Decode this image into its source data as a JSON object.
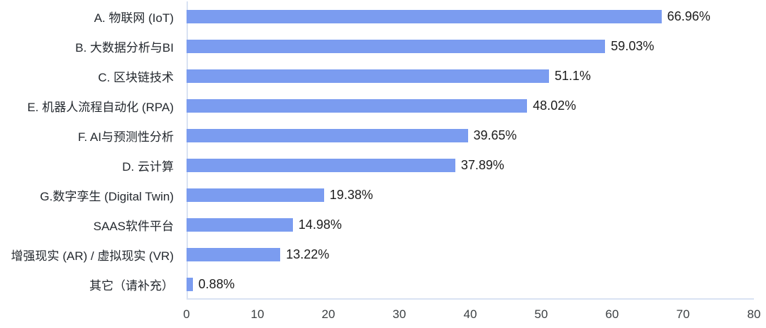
{
  "chart_data": {
    "type": "bar",
    "orientation": "horizontal",
    "title": "",
    "categories": [
      "A. 物联网 (IoT)",
      "B. 大数据分析与BI",
      "C. 区块链技术",
      "E. 机器人流程自动化 (RPA)",
      "F. AI与预测性分析",
      "D. 云计算",
      "G.数字孪生 (Digital Twin)",
      "SAAS软件平台",
      "增强现实 (AR) / 虚拟现实 (VR)",
      "其它（请补充）"
    ],
    "values": [
      66.96,
      59.03,
      51.1,
      48.02,
      39.65,
      37.89,
      19.38,
      14.98,
      13.22,
      0.88
    ],
    "value_labels": [
      "66.96%",
      "59.03%",
      "51.1%",
      "48.02%",
      "39.65%",
      "37.89%",
      "19.38%",
      "14.98%",
      "13.22%",
      "0.88%"
    ],
    "xlabel": "",
    "ylabel": "",
    "xlim": [
      0,
      80
    ],
    "x_ticks": [
      "0",
      "10",
      "20",
      "30",
      "40",
      "50",
      "60",
      "70",
      "80"
    ],
    "grid": false,
    "legend": false,
    "colors": {
      "bar": "#7b9cf0",
      "axis_line": "#d9e2f3",
      "category_text": "#24292f",
      "value_text": "#1c1c1c",
      "tick_text": "#3c4043",
      "background": "#ffffff"
    }
  }
}
